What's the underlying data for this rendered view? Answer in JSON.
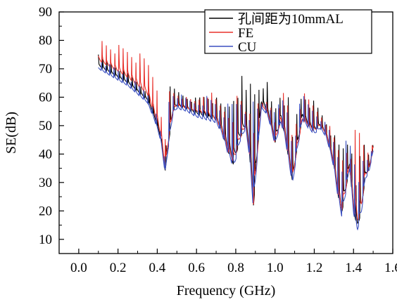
{
  "chart_data": {
    "type": "line",
    "title": "",
    "xlabel": "Frequency (GHz)",
    "ylabel": "SE(dB)",
    "xlim": [
      -0.1,
      1.6
    ],
    "ylim": [
      5,
      90
    ],
    "x_ticks": [
      0.0,
      0.2,
      0.4,
      0.6,
      0.8,
      1.0,
      1.2,
      1.4,
      1.6
    ],
    "x_tick_labels": [
      "0.0",
      "0.2",
      "0.4",
      "0.6",
      "0.8",
      "1.0",
      "1.2",
      "1.4",
      "1.6"
    ],
    "y_ticks": [
      10,
      20,
      30,
      40,
      50,
      60,
      70,
      80,
      90
    ],
    "y_tick_labels": [
      "10",
      "20",
      "30",
      "40",
      "50",
      "60",
      "70",
      "80",
      "90"
    ],
    "grid": false,
    "legend_position": "top-right",
    "series": [
      {
        "name": "孔间距为10mmAL",
        "color": "#000000",
        "x": [
          0.1,
          0.15,
          0.2,
          0.25,
          0.3,
          0.35,
          0.38,
          0.4,
          0.42,
          0.44,
          0.46,
          0.48,
          0.5,
          0.55,
          0.6,
          0.65,
          0.7,
          0.73,
          0.76,
          0.79,
          0.82,
          0.85,
          0.87,
          0.89,
          0.91,
          0.93,
          0.96,
          0.98,
          1.0,
          1.03,
          1.05,
          1.07,
          1.09,
          1.11,
          1.14,
          1.17,
          1.2,
          1.23,
          1.26,
          1.28,
          1.3,
          1.32,
          1.34,
          1.36,
          1.38,
          1.4,
          1.42,
          1.44,
          1.46,
          1.48,
          1.5
        ],
        "values": [
          71,
          69,
          67,
          65,
          62,
          59,
          54,
          50,
          45,
          34,
          45,
          55,
          57,
          56,
          54,
          53,
          52,
          48,
          41,
          36,
          45,
          50,
          40,
          21,
          40,
          58,
          55,
          50,
          44,
          52,
          47,
          38,
          30,
          41,
          53,
          50,
          48,
          50,
          47,
          42,
          36,
          26,
          19,
          27,
          36,
          20,
          14,
          20,
          32,
          35,
          42
        ],
        "peaks": [
          75,
          73,
          71,
          69,
          66,
          63,
          58,
          54,
          48,
          40,
          64,
          64,
          63,
          61,
          60,
          62,
          60,
          58,
          59,
          68,
          71,
          63,
          70,
          72,
          71,
          68,
          66,
          60,
          58,
          64,
          62,
          60,
          47,
          56,
          64,
          61,
          59,
          56,
          52,
          50,
          47,
          45,
          44,
          47,
          46,
          45,
          32,
          44,
          45,
          40,
          44
        ]
      },
      {
        "name": "FE",
        "color": "#e8302a",
        "x": [
          0.1,
          0.15,
          0.2,
          0.25,
          0.3,
          0.35,
          0.38,
          0.4,
          0.42,
          0.44,
          0.46,
          0.48,
          0.5,
          0.55,
          0.6,
          0.65,
          0.7,
          0.73,
          0.76,
          0.79,
          0.82,
          0.85,
          0.87,
          0.89,
          0.91,
          0.93,
          0.96,
          0.98,
          1.0,
          1.03,
          1.05,
          1.07,
          1.09,
          1.11,
          1.14,
          1.17,
          1.2,
          1.23,
          1.26,
          1.28,
          1.3,
          1.32,
          1.34,
          1.36,
          1.38,
          1.4,
          1.42,
          1.44,
          1.46,
          1.48,
          1.5
        ],
        "values": [
          73,
          71,
          69,
          67,
          64,
          61,
          55,
          51,
          46,
          35,
          46,
          55,
          57,
          56,
          55,
          54,
          52,
          48,
          41,
          37,
          45,
          50,
          40,
          22,
          40,
          57,
          55,
          50,
          44,
          52,
          47,
          38,
          31,
          41,
          52,
          50,
          48,
          50,
          47,
          42,
          36,
          26,
          20,
          27,
          36,
          21,
          15,
          21,
          32,
          35,
          42
        ],
        "peaks": [
          82,
          80,
          79,
          78,
          76,
          74,
          70,
          67,
          58,
          45,
          64,
          63,
          62,
          60,
          59,
          64,
          60,
          58,
          58,
          61,
          62,
          56,
          60,
          60,
          58,
          58,
          59,
          58,
          54,
          62,
          62,
          58,
          48,
          55,
          62,
          60,
          58,
          55,
          52,
          50,
          47,
          45,
          42,
          46,
          44,
          44,
          59,
          44,
          49,
          40,
          46
        ]
      },
      {
        "name": "CU",
        "color": "#3a4fc0",
        "x": [
          0.1,
          0.15,
          0.2,
          0.25,
          0.3,
          0.35,
          0.38,
          0.4,
          0.42,
          0.44,
          0.46,
          0.48,
          0.5,
          0.55,
          0.6,
          0.65,
          0.7,
          0.73,
          0.76,
          0.79,
          0.82,
          0.85,
          0.87,
          0.89,
          0.91,
          0.93,
          0.96,
          0.98,
          1.0,
          1.03,
          1.05,
          1.07,
          1.09,
          1.11,
          1.14,
          1.17,
          1.2,
          1.23,
          1.26,
          1.28,
          1.3,
          1.32,
          1.34,
          1.36,
          1.38,
          1.4,
          1.42,
          1.44,
          1.46,
          1.48,
          1.5
        ],
        "values": [
          70,
          68,
          66,
          64,
          61,
          58,
          53,
          49,
          44,
          33,
          44,
          54,
          56,
          55,
          53,
          52,
          51,
          47,
          40,
          35,
          44,
          49,
          39,
          20,
          39,
          56,
          54,
          49,
          43,
          51,
          46,
          37,
          29,
          40,
          52,
          49,
          47,
          49,
          46,
          41,
          35,
          25,
          18,
          26,
          35,
          19,
          13,
          19,
          31,
          34,
          41
        ],
        "peaks": [
          74,
          72,
          70,
          68,
          65,
          62,
          57,
          53,
          47,
          39,
          63,
          63,
          62,
          60,
          59,
          61,
          59,
          57,
          58,
          60,
          62,
          56,
          60,
          60,
          58,
          58,
          59,
          58,
          54,
          61,
          60,
          57,
          46,
          54,
          62,
          59,
          57,
          54,
          51,
          49,
          46,
          44,
          42,
          45,
          44,
          43,
          30,
          43,
          44,
          39,
          43
        ]
      }
    ]
  }
}
